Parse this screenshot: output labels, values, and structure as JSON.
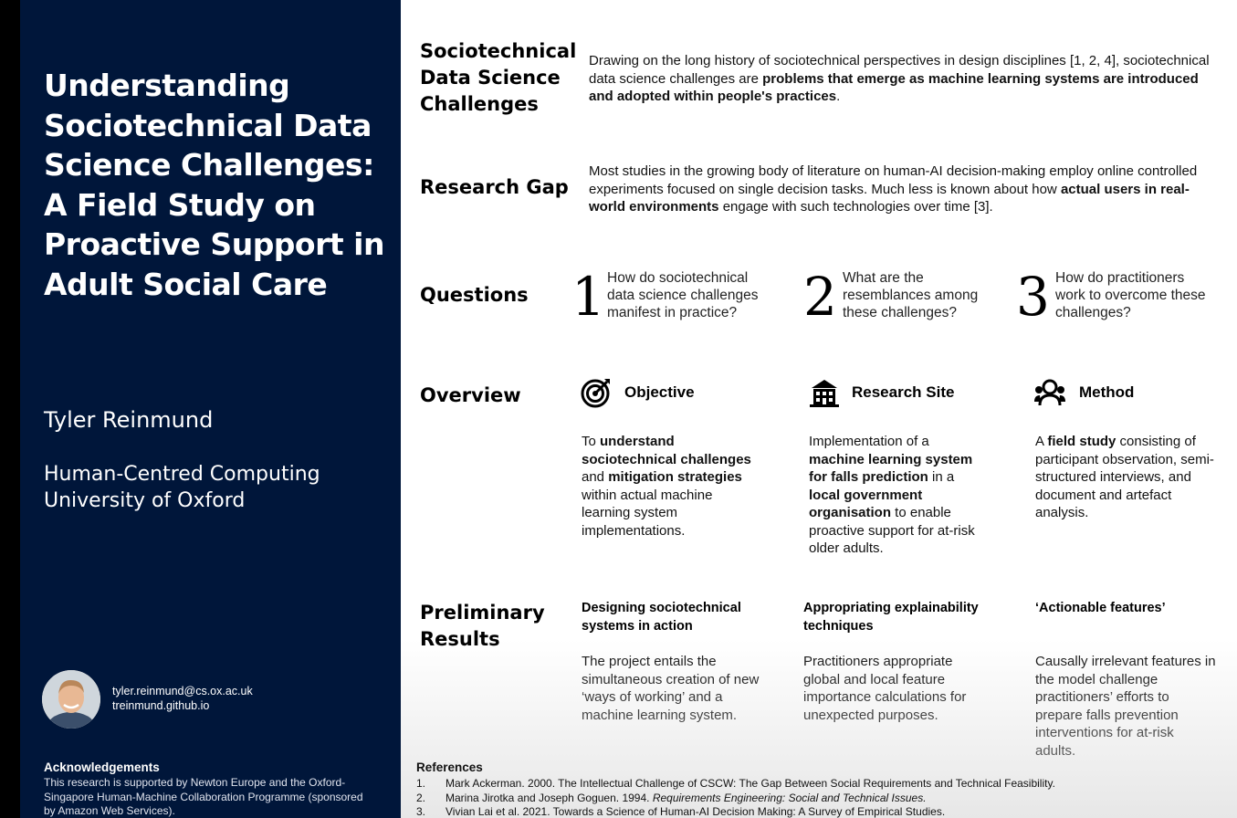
{
  "sidebar": {
    "title_lines": [
      "Understanding",
      "Sociotechnical Data",
      "Science Challenges:",
      "A Field Study on",
      "Proactive Support in",
      "Adult Social Care"
    ],
    "author": "Tyler Reinmund",
    "affiliation_lines": [
      "Human-Centred Computing",
      "University of Oxford"
    ],
    "email": "tyler.reinmund@cs.ox.ac.uk",
    "website": "treinmund.github.io",
    "ack_heading": "Acknowledgements",
    "ack_lines": [
      "This research is supported by Newton Europe and the Oxford-",
      "Singapore Human-Machine Collaboration Programme (sponsored",
      "by Amazon Web Services)."
    ]
  },
  "sections": {
    "challenges": {
      "heading_lines": [
        "Sociotechnical",
        "Data Science",
        "Challenges"
      ],
      "text_plain": "Drawing on the long history of sociotechnical perspectives in design disciplines [1, 2, 4], sociotechnical data science challenges are ",
      "text_bold": "problems that emerge as machine learning systems are introduced and adopted within people's practices",
      "text_end": "."
    },
    "gap": {
      "heading": "Research Gap",
      "text_plain": "Most studies in the growing body of literature on human-AI decision-making employ online controlled experiments focused on single decision tasks. Much less is known about how ",
      "text_bold": "actual users in real-world environments",
      "text_end": " engage with such technologies over time [3]."
    },
    "questions": {
      "heading": "Questions",
      "items": [
        {
          "num": "1",
          "lines": [
            "How do sociotechnical",
            "data science challenges",
            "manifest in practice?"
          ]
        },
        {
          "num": "2",
          "lines": [
            "What are the",
            "resemblances among",
            "these challenges?"
          ]
        },
        {
          "num": "3",
          "lines": [
            "How do practitioners",
            "work to overcome these",
            "challenges?"
          ]
        }
      ]
    },
    "overview": {
      "heading": "Overview",
      "objective": {
        "title": "Objective",
        "icon": "target-icon"
      },
      "site": {
        "title": "Research Site",
        "icon": "building-icon"
      },
      "method": {
        "title": "Method",
        "icon": "group-icon"
      },
      "objective_t": [
        "To ",
        "understand sociotechnical challenges",
        " and ",
        "mitigation strategies",
        " within actual machine learning system implementations."
      ],
      "site_t": [
        "Implementation of a ",
        "machine learning system for falls prediction",
        " in a ",
        "local government organisation",
        " to enable proactive support for at-risk older adults."
      ],
      "method_t": [
        "A ",
        "field study",
        " consisting of participant observation, semi-structured interviews, and document and artefact analysis."
      ]
    },
    "results": {
      "heading_lines": [
        "Preliminary",
        "Results"
      ],
      "items": [
        {
          "title": "Designing sociotechnical systems in action",
          "text": "The project entails the simultaneous creation of new ‘ways of working’ and a machine learning system."
        },
        {
          "title": "Appropriating explainability techniques",
          "text": "Practitioners appropriate global and local feature importance calculations for unexpected purposes."
        },
        {
          "title": "‘Actionable features’",
          "text": "Causally irrelevant features in the model challenge practitioners’ efforts to prepare falls prevention interventions for at-risk adults."
        }
      ]
    }
  },
  "references": {
    "heading": "References",
    "items": [
      {
        "num": "1.",
        "pre": "Mark Ackerman. 2000. The Intellectual Challenge of CSCW: The Gap Between Social Requirements and Technical Feasibility.",
        "ital": "",
        "post": ""
      },
      {
        "num": "2.",
        "pre": "Marina Jirotka and Joseph Goguen. 1994. ",
        "ital": "Requirements Engineering: Social and Technical Issues.",
        "post": ""
      },
      {
        "num": "3.",
        "pre": "Vivian Lai et al. 2021. Towards a Science of Human-AI Decision Making: A Survey of Empirical Studies.",
        "ital": "",
        "post": ""
      }
    ]
  }
}
